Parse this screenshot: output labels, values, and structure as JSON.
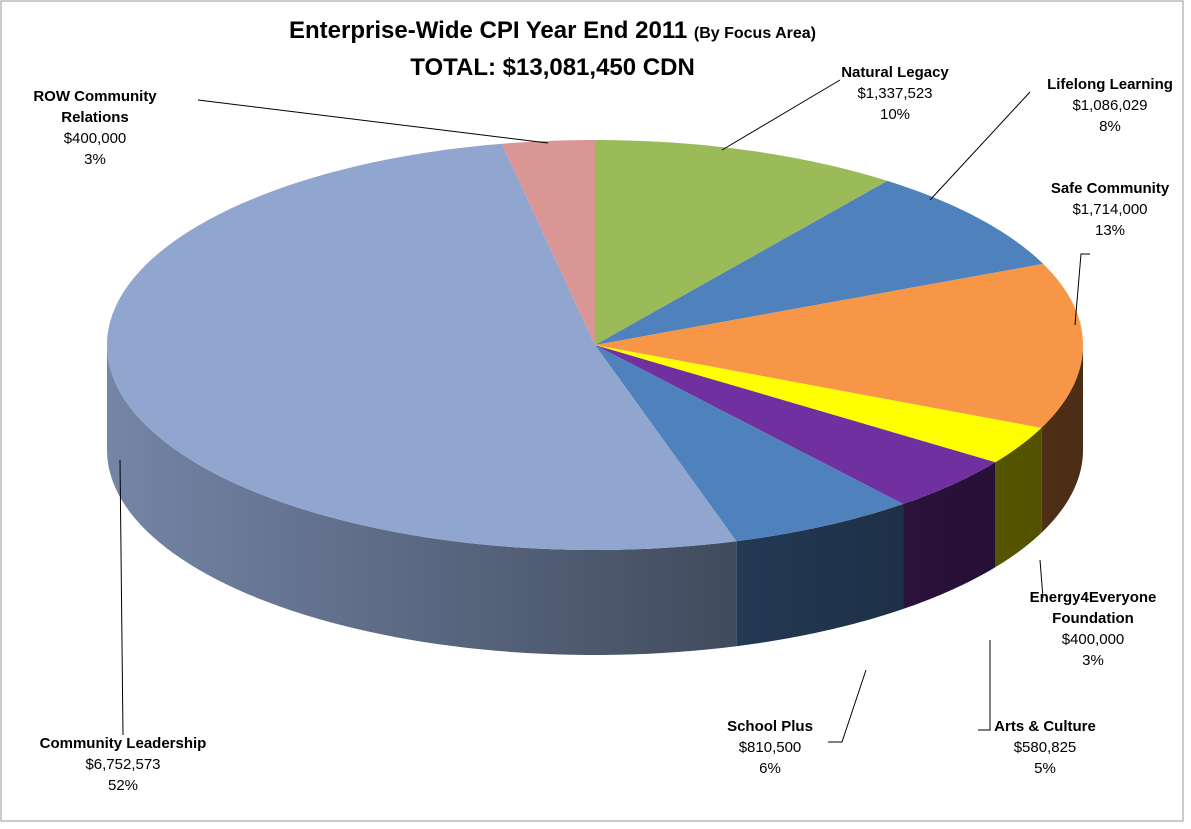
{
  "chart_data": {
    "type": "pie",
    "style": "3d",
    "title": "Enterprise-Wide CPI Year End 2011",
    "title_note": "(By Focus Area)",
    "subtitle": "TOTAL: $13,081,450 CDN",
    "categories": [
      "Natural Legacy",
      "Lifelong Learning",
      "Safe Community",
      "Energy4Everyone Foundation",
      "Arts & Culture",
      "School Plus",
      "Community Leadership",
      "ROW Community Relations"
    ],
    "values": [
      1337523,
      1086029,
      1714000,
      400000,
      580825,
      810500,
      6752573,
      400000
    ],
    "value_labels": [
      "$1,337,523",
      "$1,086,029",
      "$1,714,000",
      "$400,000",
      "$580,825",
      "$810,500",
      "$6,752,573",
      "$400,000"
    ],
    "percentages": [
      10,
      8,
      13,
      3,
      5,
      6,
      52,
      3
    ],
    "percentage_labels": [
      "10%",
      "8%",
      "13%",
      "3%",
      "5%",
      "6%",
      "52%",
      "3%"
    ],
    "colors": [
      "#9bbb59",
      "#4f81bd",
      "#f79646",
      "#ffff00",
      "#7030a0",
      "#4f81bd",
      "#91a6cf",
      "#d99694"
    ]
  }
}
